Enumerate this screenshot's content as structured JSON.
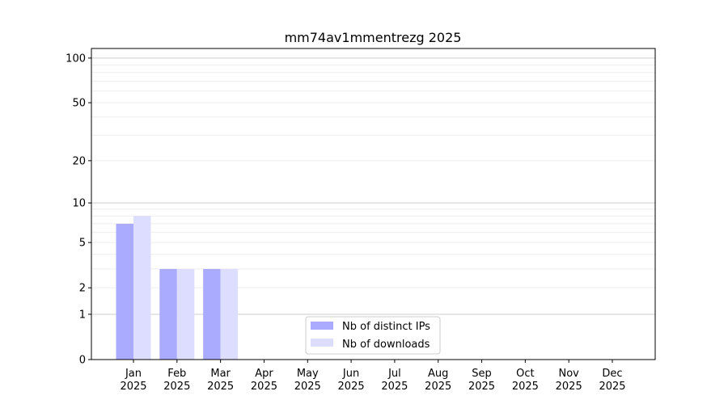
{
  "chart_data": {
    "type": "bar",
    "title": "mm74av1mmentrezg 2025",
    "xlabel": "",
    "ylabel": "",
    "y_scale": "symlog (log10 of 1+value)",
    "ylim": [
      0,
      116
    ],
    "yticks": [
      0,
      1,
      2,
      5,
      10,
      20,
      50,
      100
    ],
    "grid": true,
    "legend_position": "bottom-center",
    "categories": [
      "Jan\n2025",
      "Feb\n2025",
      "Mar\n2025",
      "Apr\n2025",
      "May\n2025",
      "Jun\n2025",
      "Jul\n2025",
      "Aug\n2025",
      "Sep\n2025",
      "Oct\n2025",
      "Nov\n2025",
      "Dec\n2025"
    ],
    "series": [
      {
        "name": "Nb of distinct IPs",
        "color": "#aaaaff",
        "values": [
          7,
          3,
          3,
          0,
          0,
          0,
          0,
          0,
          0,
          0,
          0,
          0
        ]
      },
      {
        "name": "Nb of downloads",
        "color": "#ddddff",
        "values": [
          8,
          3,
          3,
          0,
          0,
          0,
          0,
          0,
          0,
          0,
          0,
          0
        ]
      }
    ]
  }
}
